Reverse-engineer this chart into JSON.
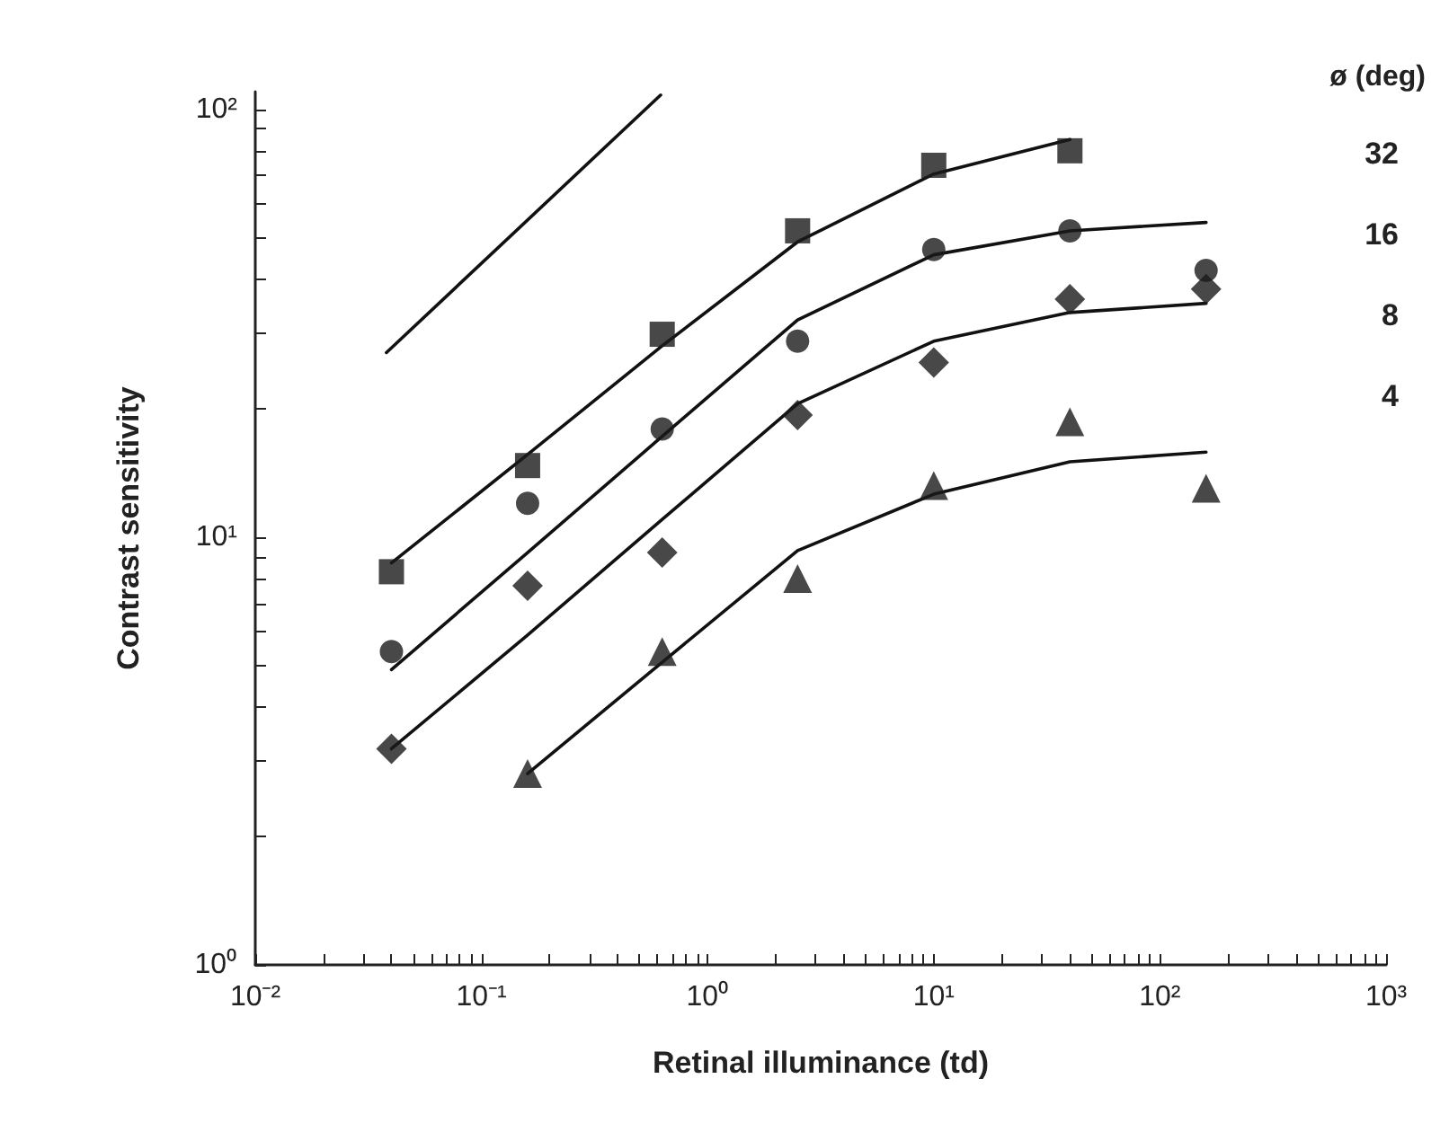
{
  "chart_data": {
    "type": "scatter",
    "xlabel": "Retinal illuminance (td)",
    "ylabel": "Contrast sensitivity",
    "legend_title": "ø (deg)",
    "legend": "top right",
    "log": "xy",
    "grid": false,
    "x": [
      0.04,
      0.16,
      0.63,
      2.5,
      10,
      40,
      160
    ],
    "xlim": [
      0.01,
      1000
    ],
    "ylim": [
      1,
      110
    ],
    "xticks": [
      {
        "value": 0.01,
        "label": "10⁻²"
      },
      {
        "value": 0.1,
        "label": "10⁻¹"
      },
      {
        "value": 1,
        "label": "10⁰"
      },
      {
        "value": 10,
        "label": "10¹"
      },
      {
        "value": 100,
        "label": "10²"
      },
      {
        "value": 1000,
        "label": "10³"
      }
    ],
    "yticks": [
      {
        "value": 1,
        "label": "10⁰"
      },
      {
        "value": 10,
        "label": "10¹"
      },
      {
        "value": 100,
        "label": "10²"
      }
    ],
    "series": [
      {
        "name": "32",
        "marker": "square",
        "color": "#1a1a1a",
        "values": [
          8.3,
          14.7,
          29.8,
          52,
          74,
          80,
          null
        ]
      },
      {
        "name": "16",
        "marker": "circle",
        "color": "#1a1a1a",
        "values": [
          5.4,
          12,
          17.9,
          28.7,
          47,
          52,
          42
        ]
      },
      {
        "name": "8",
        "marker": "diamond",
        "color": "#1a1a1a",
        "values": [
          3.2,
          7.7,
          9.2,
          19.3,
          25.6,
          36,
          38
        ]
      },
      {
        "name": "4",
        "marker": "triangle",
        "color": "#1a1a1a",
        "values": [
          null,
          2.8,
          5.4,
          8,
          13.2,
          18.6,
          13
        ]
      },
      {
        "type": "line",
        "marker": "none",
        "color": "#111111",
        "values": [
          8.7,
          15.6,
          28,
          49,
          70.6,
          85,
          null
        ]
      },
      {
        "type": "line",
        "marker": "none",
        "color": "#111111",
        "values": [
          4.9,
          9.2,
          17.2,
          32.2,
          45.7,
          52,
          54.4
        ]
      },
      {
        "type": "line",
        "marker": "none",
        "color": "#111111",
        "values": [
          3.2,
          5.9,
          11,
          20.5,
          28.7,
          33.5,
          35.2
        ]
      },
      {
        "type": "line",
        "marker": "none",
        "color": "#111111",
        "values": [
          null,
          2.8,
          5.1,
          9.3,
          12.6,
          15,
          15.8
        ]
      },
      {
        "type": "line",
        "marker": "none",
        "color": "#111111",
        "x": [
          0.038,
          0.62
        ],
        "values": [
          27,
          108
        ]
      }
    ]
  }
}
